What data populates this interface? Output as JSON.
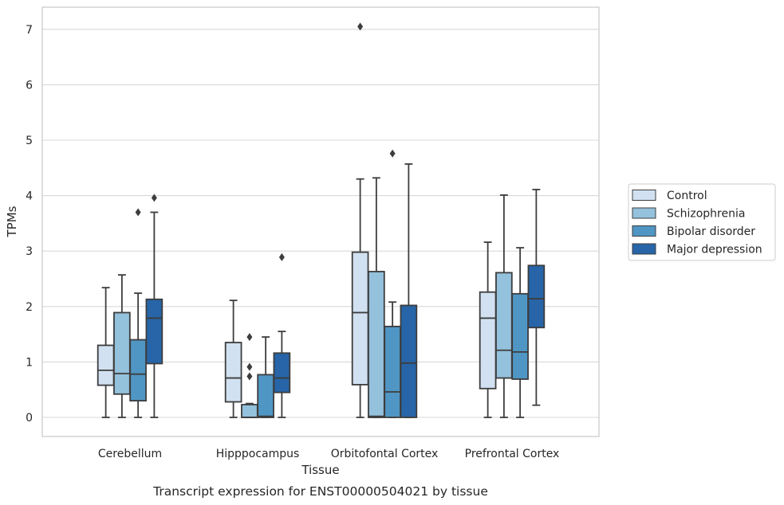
{
  "chart_data": {
    "type": "box",
    "xlabel": "Tissue",
    "ylabel": "TPMs",
    "caption": "Transcript expression for ENST00000504021 by tissue",
    "ylim": [
      -0.35,
      7.4
    ],
    "yticks": [
      0,
      1,
      2,
      3,
      4,
      5,
      6,
      7
    ],
    "grid": "horizontal",
    "legend_position": "right",
    "categories": [
      "Cerebellum",
      "Hipppocampus",
      "Orbitofontal Cortex",
      "Prefrontal Cortex"
    ],
    "series": [
      {
        "name": "Control",
        "color": "#d1e1f1",
        "boxes": [
          {
            "whislo": 0.0,
            "q1": 0.58,
            "med": 0.85,
            "q3": 1.3,
            "whishi": 2.34,
            "fliers": []
          },
          {
            "whislo": 0.0,
            "q1": 0.28,
            "med": 0.71,
            "q3": 1.35,
            "whishi": 2.11,
            "fliers": []
          },
          {
            "whislo": 0.0,
            "q1": 0.59,
            "med": 1.89,
            "q3": 2.98,
            "whishi": 4.3,
            "fliers": [
              7.05
            ]
          },
          {
            "whislo": 0.0,
            "q1": 0.52,
            "med": 1.79,
            "q3": 2.26,
            "whishi": 3.16,
            "fliers": []
          }
        ]
      },
      {
        "name": "Schizophrenia",
        "color": "#94c1dc",
        "boxes": [
          {
            "whislo": 0.0,
            "q1": 0.42,
            "med": 0.79,
            "q3": 1.89,
            "whishi": 2.57,
            "fliers": []
          },
          {
            "whislo": 0.0,
            "q1": 0.0,
            "med": 0.0,
            "q3": 0.23,
            "whishi": 0.25,
            "fliers": [
              0.74,
              0.91,
              1.45
            ]
          },
          {
            "whislo": 0.0,
            "q1": 0.0,
            "med": 0.02,
            "q3": 2.63,
            "whishi": 4.32,
            "fliers": []
          },
          {
            "whislo": 0.0,
            "q1": 0.71,
            "med": 1.21,
            "q3": 2.61,
            "whishi": 4.01,
            "fliers": []
          }
        ]
      },
      {
        "name": "Bipolar disorder",
        "color": "#5096c4",
        "boxes": [
          {
            "whislo": 0.0,
            "q1": 0.3,
            "med": 0.78,
            "q3": 1.4,
            "whishi": 2.24,
            "fliers": [
              3.7
            ]
          },
          {
            "whislo": 0.0,
            "q1": 0.0,
            "med": 0.02,
            "q3": 0.77,
            "whishi": 1.45,
            "fliers": []
          },
          {
            "whislo": 0.0,
            "q1": 0.0,
            "med": 0.46,
            "q3": 1.64,
            "whishi": 2.08,
            "fliers": [
              4.76
            ]
          },
          {
            "whislo": 0.0,
            "q1": 0.69,
            "med": 1.18,
            "q3": 2.23,
            "whishi": 3.06,
            "fliers": []
          }
        ]
      },
      {
        "name": "Major depression",
        "color": "#2765a8",
        "boxes": [
          {
            "whislo": 0.0,
            "q1": 0.97,
            "med": 1.79,
            "q3": 2.13,
            "whishi": 3.7,
            "fliers": [
              3.96
            ]
          },
          {
            "whislo": 0.0,
            "q1": 0.45,
            "med": 0.71,
            "q3": 1.16,
            "whishi": 1.55,
            "fliers": [
              2.89
            ]
          },
          {
            "whislo": 0.0,
            "q1": 0.0,
            "med": 0.98,
            "q3": 2.02,
            "whishi": 4.57,
            "fliers": []
          },
          {
            "whislo": 0.22,
            "q1": 1.62,
            "med": 2.14,
            "q3": 2.74,
            "whishi": 4.11,
            "fliers": []
          }
        ]
      }
    ]
  }
}
